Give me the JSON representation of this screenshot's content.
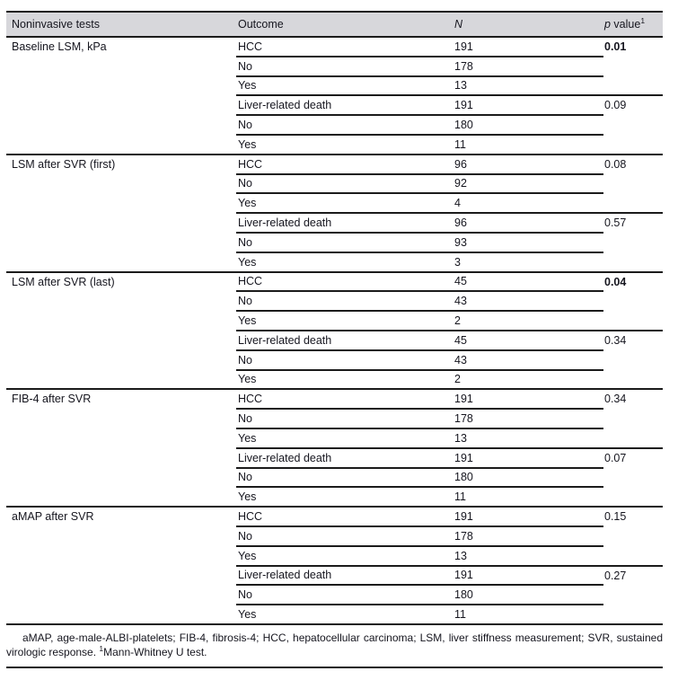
{
  "header": {
    "col_test": "Noninvasive tests",
    "col_outcome": "Outcome",
    "col_n": "N",
    "col_p_italic": "p",
    "col_p_rest": " value",
    "col_p_sup": "1"
  },
  "sections": [
    {
      "test": "Baseline LSM, kPa",
      "groups": [
        {
          "outcome": "HCC",
          "n": "191",
          "p": "0.01",
          "p_bold": true,
          "rows": [
            {
              "outcome": "No",
              "n": "178"
            },
            {
              "outcome": "Yes",
              "n": "13"
            }
          ]
        },
        {
          "outcome": "Liver-related death",
          "n": "191",
          "p": "0.09",
          "p_bold": false,
          "rows": [
            {
              "outcome": "No",
              "n": "180"
            },
            {
              "outcome": "Yes",
              "n": "11"
            }
          ]
        }
      ]
    },
    {
      "test": "LSM after SVR (first)",
      "groups": [
        {
          "outcome": "HCC",
          "n": "96",
          "p": "0.08",
          "p_bold": false,
          "rows": [
            {
              "outcome": "No",
              "n": "92"
            },
            {
              "outcome": "Yes",
              "n": "4"
            }
          ]
        },
        {
          "outcome": "Liver-related death",
          "n": "96",
          "p": "0.57",
          "p_bold": false,
          "rows": [
            {
              "outcome": "No",
              "n": "93"
            },
            {
              "outcome": "Yes",
              "n": "3"
            }
          ]
        }
      ]
    },
    {
      "test": "LSM after SVR (last)",
      "groups": [
        {
          "outcome": "HCC",
          "n": "45",
          "p": "0.04",
          "p_bold": true,
          "rows": [
            {
              "outcome": "No",
              "n": "43"
            },
            {
              "outcome": "Yes",
              "n": "2"
            }
          ]
        },
        {
          "outcome": "Liver-related death",
          "n": "45",
          "p": "0.34",
          "p_bold": false,
          "rows": [
            {
              "outcome": "No",
              "n": "43"
            },
            {
              "outcome": "Yes",
              "n": "2"
            }
          ]
        }
      ]
    },
    {
      "test": "FIB-4 after SVR",
      "groups": [
        {
          "outcome": "HCC",
          "n": "191",
          "p": "0.34",
          "p_bold": false,
          "rows": [
            {
              "outcome": "No",
              "n": "178"
            },
            {
              "outcome": "Yes",
              "n": "13"
            }
          ]
        },
        {
          "outcome": "Liver-related death",
          "n": "191",
          "p": "0.07",
          "p_bold": false,
          "rows": [
            {
              "outcome": "No",
              "n": "180"
            },
            {
              "outcome": "Yes",
              "n": "11"
            }
          ]
        }
      ]
    },
    {
      "test": "aMAP after SVR",
      "groups": [
        {
          "outcome": "HCC",
          "n": "191",
          "p": "0.15",
          "p_bold": false,
          "rows": [
            {
              "outcome": "No",
              "n": "178"
            },
            {
              "outcome": "Yes",
              "n": "13"
            }
          ]
        },
        {
          "outcome": "Liver-related death",
          "n": "191",
          "p": "0.27",
          "p_bold": false,
          "rows": [
            {
              "outcome": "No",
              "n": "180"
            },
            {
              "outcome": "Yes",
              "n": "11"
            }
          ]
        }
      ]
    }
  ],
  "footnote": {
    "abbreviations": "aMAP, age-male-ALBI-platelets; FIB-4, fibrosis-4; HCC, hepatocellular carcinoma; LSM, liver stiffness measurement; SVR, sustained virologic response. ",
    "marker": "1",
    "test_note": "Mann-Whitney U test."
  },
  "colors": {
    "header_bg": "#d7d7db",
    "rule": "#1b1b1b",
    "text": "#15151e"
  }
}
